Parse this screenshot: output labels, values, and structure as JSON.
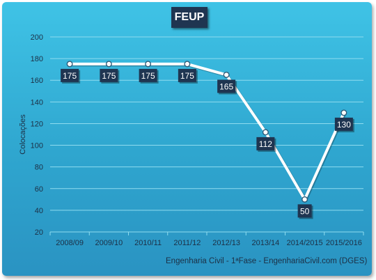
{
  "chart_data": {
    "type": "line",
    "title": "FEUP",
    "ylabel": "Colocações",
    "xlabel": "",
    "categories": [
      "2008/09",
      "2009/10",
      "2010/11",
      "2011/12",
      "2012/13",
      "2013/14",
      "2014/2015",
      "2015/2016"
    ],
    "values": [
      175,
      175,
      175,
      175,
      165,
      112,
      50,
      130
    ],
    "ylim": [
      20,
      200
    ],
    "yticks": [
      20,
      40,
      60,
      80,
      100,
      120,
      140,
      160,
      180,
      200
    ],
    "grid": true,
    "legend": "none",
    "colors": {
      "line": "#ffffff",
      "label_bg": "#1f3551",
      "label_text": "#ffffff",
      "grid": "#8fdcef",
      "axis_text": "#1c2f45"
    }
  },
  "footer": "Engenharia Civil - 1ªFase - EngenhariaCivil.com (DGES)"
}
